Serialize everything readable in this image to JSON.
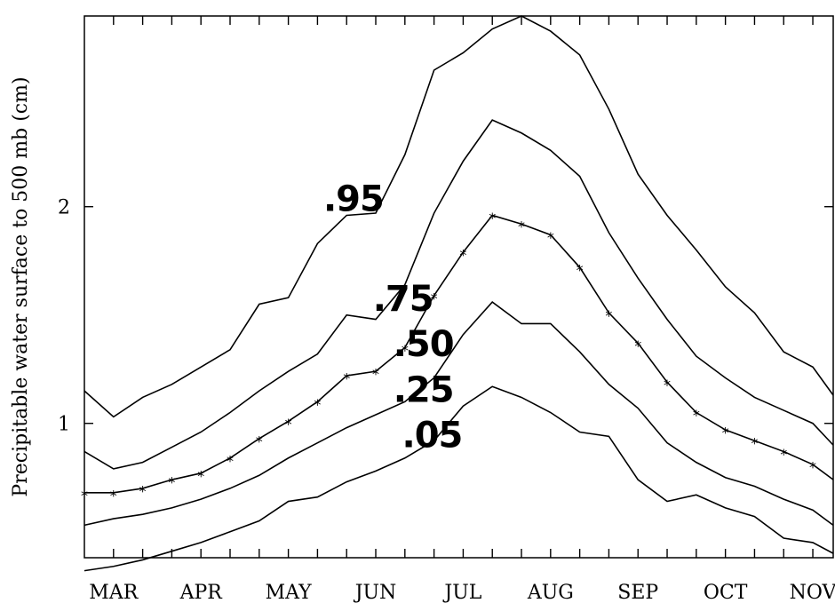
{
  "chart_data": {
    "type": "line",
    "ylabel": "Precipitable water surface to 500 mb (cm)",
    "xlabel": "",
    "title": "",
    "xlim": [
      0,
      25.7
    ],
    "ylim": [
      0.38,
      2.88
    ],
    "y_ticks": [
      1,
      2
    ],
    "x_tick_labels": [
      {
        "label": "MAR",
        "x": 1
      },
      {
        "label": "APR",
        "x": 4
      },
      {
        "label": "MAY",
        "x": 7
      },
      {
        "label": "JUN",
        "x": 10
      },
      {
        "label": "JUL",
        "x": 13
      },
      {
        "label": "AUG",
        "x": 16
      },
      {
        "label": "SEP",
        "x": 19
      },
      {
        "label": "OCT",
        "x": 22
      },
      {
        "label": "NOV",
        "x": 25
      }
    ],
    "x": [
      0,
      1,
      2,
      3,
      4,
      5,
      6,
      7,
      8,
      9,
      10,
      11,
      12,
      13,
      14,
      15,
      16,
      17,
      18,
      19,
      20,
      21,
      22,
      23,
      24,
      25,
      25.7
    ],
    "series": [
      {
        "name": ".95",
        "values": [
          1.15,
          1.03,
          1.12,
          1.18,
          1.26,
          1.34,
          1.55,
          1.58,
          1.83,
          1.96,
          1.97,
          2.24,
          2.63,
          2.71,
          2.82,
          2.88,
          2.81,
          2.7,
          2.45,
          2.15,
          1.96,
          1.8,
          1.63,
          1.51,
          1.33,
          1.26,
          1.13
        ]
      },
      {
        "name": ".75",
        "values": [
          0.87,
          0.79,
          0.82,
          0.89,
          0.96,
          1.05,
          1.15,
          1.24,
          1.32,
          1.5,
          1.48,
          1.64,
          1.97,
          2.21,
          2.4,
          2.34,
          2.26,
          2.14,
          1.88,
          1.67,
          1.48,
          1.31,
          1.21,
          1.12,
          1.06,
          1.0,
          0.9
        ]
      },
      {
        "name": ".50",
        "values": [
          0.68,
          0.68,
          0.7,
          0.74,
          0.77,
          0.84,
          0.93,
          1.01,
          1.1,
          1.22,
          1.24,
          1.35,
          1.59,
          1.79,
          1.96,
          1.92,
          1.87,
          1.72,
          1.51,
          1.37,
          1.19,
          1.05,
          0.97,
          0.92,
          0.87,
          0.81,
          0.74
        ]
      },
      {
        "name": ".25",
        "values": [
          0.53,
          0.56,
          0.58,
          0.61,
          0.65,
          0.7,
          0.76,
          0.84,
          0.91,
          0.98,
          1.04,
          1.1,
          1.21,
          1.41,
          1.56,
          1.46,
          1.46,
          1.33,
          1.18,
          1.07,
          0.91,
          0.82,
          0.75,
          0.71,
          0.65,
          0.6,
          0.53
        ]
      },
      {
        "name": ".05",
        "values": [
          0.32,
          0.34,
          0.37,
          0.41,
          0.45,
          0.5,
          0.55,
          0.64,
          0.66,
          0.73,
          0.78,
          0.84,
          0.92,
          1.08,
          1.17,
          1.12,
          1.05,
          0.96,
          0.94,
          0.74,
          0.64,
          0.67,
          0.61,
          0.57,
          0.47,
          0.45,
          0.4
        ]
      }
    ],
    "median_markers": {
      "name": "median",
      "x": [
        0,
        1,
        2,
        3,
        4,
        5,
        6,
        7,
        8,
        9,
        10,
        11,
        12,
        13,
        14,
        15,
        16,
        17,
        18,
        19,
        20,
        21,
        22,
        23,
        24,
        25
      ],
      "values": [
        0.68,
        0.68,
        0.7,
        0.74,
        0.77,
        0.84,
        0.93,
        1.01,
        1.1,
        1.22,
        1.24,
        1.35,
        1.59,
        1.79,
        1.96,
        1.92,
        1.87,
        1.72,
        1.51,
        1.37,
        1.19,
        1.05,
        0.97,
        0.92,
        0.87,
        0.81
      ]
    },
    "annotations": [
      {
        "text": ".95",
        "x": 8.2,
        "y": 1.98
      },
      {
        "text": ".75",
        "x": 9.9,
        "y": 1.52
      },
      {
        "text": ".50",
        "x": 10.6,
        "y": 1.31
      },
      {
        "text": ".25",
        "x": 10.6,
        "y": 1.1
      },
      {
        "text": ".05",
        "x": 10.9,
        "y": 0.89
      }
    ],
    "grid": false,
    "legend": "none"
  }
}
